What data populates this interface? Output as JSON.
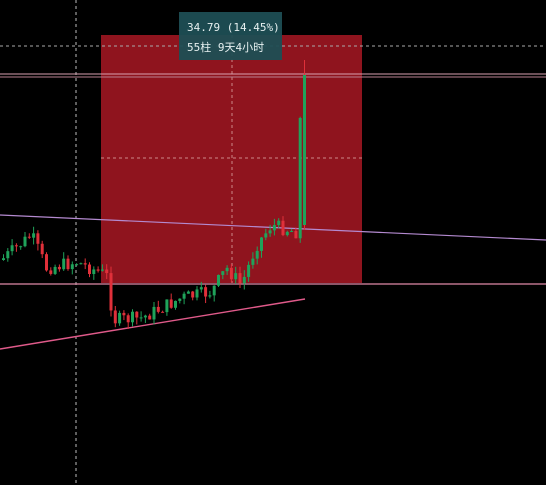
{
  "tooltip": {
    "change": "34.79 (14.45%)",
    "span": "55柱  9天4小时"
  }
}
